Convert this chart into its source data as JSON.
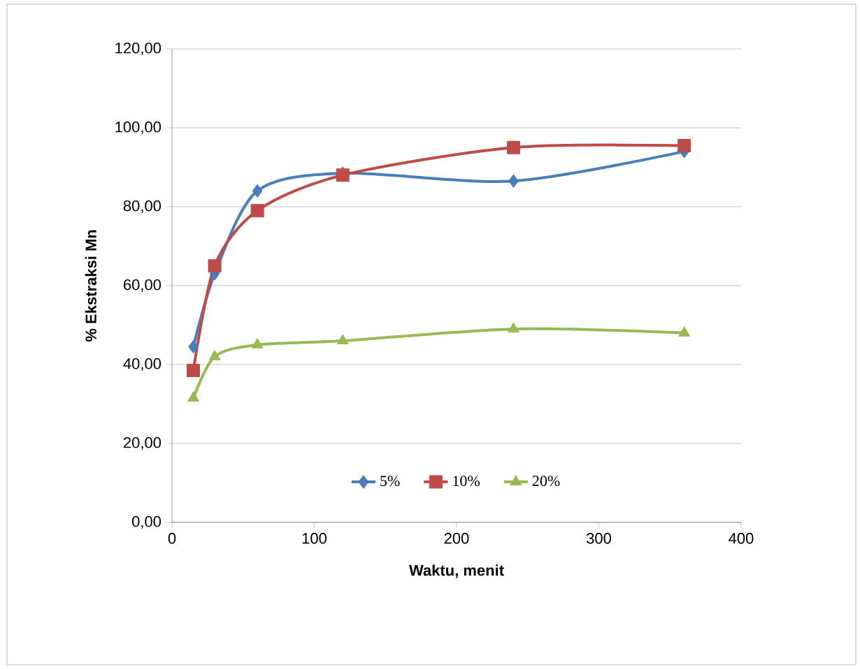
{
  "chart_data": {
    "type": "line",
    "xlabel": "Waktu, menit",
    "ylabel": "% Ekstraksi Mn",
    "x": [
      15,
      30,
      60,
      120,
      240,
      360
    ],
    "series": [
      {
        "name": "5%",
        "color": "#4a7ebb",
        "marker": "diamond",
        "values": [
          44.5,
          63,
          84,
          88.5,
          86.5,
          94
        ]
      },
      {
        "name": "10%",
        "color": "#be4b48",
        "marker": "square",
        "values": [
          38.5,
          65,
          79,
          88,
          95,
          95.5
        ]
      },
      {
        "name": "20%",
        "color": "#98b954",
        "marker": "triangle",
        "values": [
          31.5,
          42,
          45,
          46,
          49,
          48
        ]
      }
    ],
    "xlim": [
      0,
      400
    ],
    "xticks": [
      0,
      100,
      200,
      300,
      400
    ],
    "ylim": [
      0,
      120
    ],
    "yticks": [
      {
        "value": 0,
        "label": "0,00"
      },
      {
        "value": 20,
        "label": "20,00"
      },
      {
        "value": 40,
        "label": "40,00"
      },
      {
        "value": 60,
        "label": "60,00"
      },
      {
        "value": 80,
        "label": "80,00"
      },
      {
        "value": 100,
        "label": "100,00"
      },
      {
        "value": 120,
        "label": "120,00"
      }
    ],
    "grid": "y",
    "legend": "bottom",
    "line_style": "solid"
  }
}
